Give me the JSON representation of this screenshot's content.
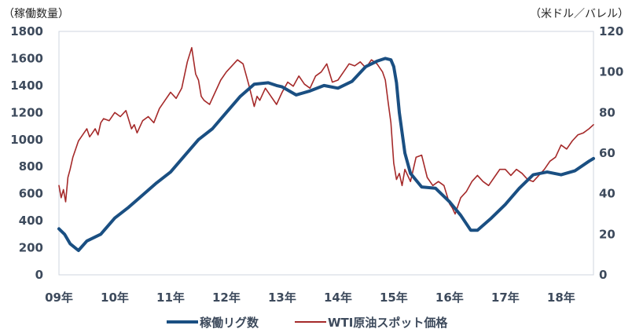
{
  "chart_data": {
    "type": "line",
    "title": "",
    "left_axis": {
      "unit_label": "（稼働数量）",
      "range": [
        0,
        1800
      ],
      "ticks": [
        "0",
        "200",
        "400",
        "600",
        "800",
        "1000",
        "1200",
        "1400",
        "1600",
        "1800"
      ]
    },
    "right_axis": {
      "unit_label": "（米ドル／バレル）",
      "range": [
        0,
        120
      ],
      "ticks": [
        "0",
        "20",
        "40",
        "60",
        "80",
        "100",
        "120"
      ]
    },
    "x_axis": {
      "range": [
        2009.0,
        2018.58
      ],
      "tick_labels": [
        "09年",
        "10年",
        "11年",
        "12年",
        "13年",
        "14年",
        "15年",
        "16年",
        "17年",
        "18年"
      ]
    },
    "legend_position": "bottom",
    "grid": false,
    "series": [
      {
        "name": "稼働リグ数",
        "axis": "left",
        "color": "#1a4f82",
        "x": [
          2009.0,
          2009.1,
          2009.2,
          2009.35,
          2009.5,
          2009.75,
          2010.0,
          2010.25,
          2010.5,
          2010.75,
          2011.0,
          2011.25,
          2011.5,
          2011.75,
          2012.0,
          2012.25,
          2012.5,
          2012.75,
          2012.9,
          2013.0,
          2013.25,
          2013.5,
          2013.75,
          2014.0,
          2014.25,
          2014.5,
          2014.7,
          2014.85,
          2014.95,
          2015.0,
          2015.05,
          2015.1,
          2015.2,
          2015.3,
          2015.5,
          2015.75,
          2016.0,
          2016.2,
          2016.38,
          2016.5,
          2016.75,
          2017.0,
          2017.25,
          2017.5,
          2017.75,
          2018.0,
          2018.25,
          2018.5,
          2018.58
        ],
        "values": [
          340,
          300,
          230,
          180,
          250,
          300,
          420,
          500,
          590,
          680,
          760,
          880,
          1000,
          1080,
          1200,
          1320,
          1410,
          1420,
          1400,
          1390,
          1330,
          1360,
          1400,
          1380,
          1430,
          1540,
          1580,
          1600,
          1590,
          1540,
          1420,
          1200,
          900,
          750,
          650,
          640,
          540,
          440,
          330,
          330,
          420,
          520,
          640,
          740,
          760,
          740,
          770,
          840,
          860
        ]
      },
      {
        "name": "WTI原油スポット価格",
        "axis": "right",
        "color": "#a52a2a",
        "x": [
          2009.0,
          2009.04,
          2009.08,
          2009.12,
          2009.16,
          2009.2,
          2009.25,
          2009.3,
          2009.35,
          2009.4,
          2009.45,
          2009.5,
          2009.55,
          2009.6,
          2009.65,
          2009.7,
          2009.75,
          2009.8,
          2009.9,
          2010.0,
          2010.1,
          2010.2,
          2010.3,
          2010.35,
          2010.4,
          2010.5,
          2010.6,
          2010.7,
          2010.8,
          2010.9,
          2011.0,
          2011.1,
          2011.2,
          2011.3,
          2011.38,
          2011.45,
          2011.5,
          2011.55,
          2011.6,
          2011.7,
          2011.8,
          2011.9,
          2012.0,
          2012.1,
          2012.2,
          2012.3,
          2012.4,
          2012.5,
          2012.55,
          2012.6,
          2012.7,
          2012.8,
          2012.9,
          2013.0,
          2013.1,
          2013.2,
          2013.3,
          2013.4,
          2013.5,
          2013.6,
          2013.7,
          2013.8,
          2013.9,
          2014.0,
          2014.1,
          2014.2,
          2014.3,
          2014.4,
          2014.5,
          2014.6,
          2014.7,
          2014.8,
          2014.85,
          2014.9,
          2014.95,
          2015.0,
          2015.05,
          2015.1,
          2015.15,
          2015.2,
          2015.3,
          2015.4,
          2015.5,
          2015.6,
          2015.7,
          2015.8,
          2015.9,
          2016.0,
          2016.05,
          2016.1,
          2016.15,
          2016.2,
          2016.3,
          2016.4,
          2016.5,
          2016.6,
          2016.7,
          2016.8,
          2016.9,
          2017.0,
          2017.1,
          2017.2,
          2017.3,
          2017.4,
          2017.5,
          2017.6,
          2017.7,
          2017.8,
          2017.9,
          2018.0,
          2018.1,
          2018.2,
          2018.3,
          2018.4,
          2018.5,
          2018.58
        ],
        "values": [
          44,
          38,
          42,
          36,
          48,
          52,
          58,
          62,
          66,
          68,
          70,
          72,
          68,
          70,
          72,
          69,
          75,
          77,
          76,
          80,
          78,
          81,
          72,
          74,
          70,
          76,
          78,
          75,
          82,
          86,
          90,
          87,
          92,
          105,
          112,
          99,
          96,
          88,
          86,
          84,
          90,
          96,
          100,
          103,
          106,
          104,
          94,
          83,
          88,
          86,
          92,
          88,
          84,
          90,
          95,
          93,
          98,
          94,
          92,
          98,
          100,
          104,
          95,
          96,
          100,
          104,
          103,
          105,
          102,
          106,
          104,
          100,
          96,
          85,
          75,
          55,
          47,
          50,
          44,
          52,
          46,
          58,
          59,
          48,
          44,
          46,
          44,
          35,
          33,
          30,
          34,
          38,
          41,
          46,
          49,
          46,
          44,
          48,
          52,
          52,
          49,
          52,
          50,
          47,
          46,
          49,
          52,
          56,
          58,
          64,
          62,
          66,
          69,
          70,
          72,
          74
        ]
      }
    ]
  }
}
